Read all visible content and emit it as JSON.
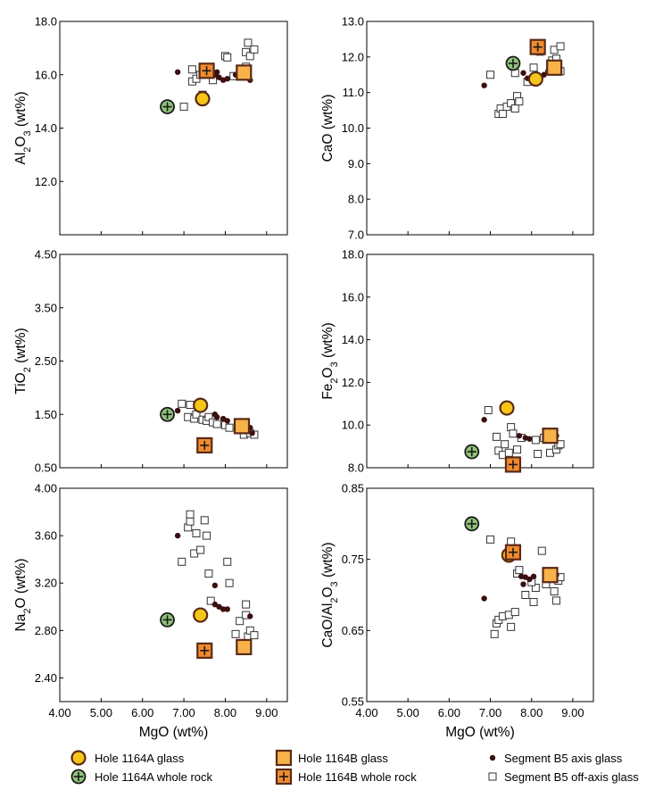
{
  "colors": {
    "glass_1164A_fill": "#f5c518",
    "whole_rock_1164A_fill": "#8fc17a",
    "glass_1164B_fill": "#f7b24a",
    "whole_rock_1164B_fill": "#f08c2e",
    "marker_edge": "#5a2a17",
    "axis_glass": "#3b0f0f",
    "off_axis_edge": "#333333"
  },
  "legend": [
    {
      "key": "glass_1164A",
      "label": "Hole 1164A glass"
    },
    {
      "key": "wr_1164A",
      "label": "Hole 1164A whole rock"
    },
    {
      "key": "glass_1164B",
      "label": "Hole 1164B glass"
    },
    {
      "key": "wr_1164B",
      "label": "Hole 1164B whole rock"
    },
    {
      "key": "axis",
      "label": "Segment B5 axis glass"
    },
    {
      "key": "offaxis",
      "label": "Segment B5 off-axis glass"
    }
  ],
  "chart_data": [
    {
      "type": "scatter",
      "panel": "al2o3",
      "ylabel": "Al2O3 (wt%)",
      "xlim": [
        4,
        9.5
      ],
      "ylim": [
        10.0,
        18.0
      ],
      "xticks": [
        "4.00",
        "5.00",
        "6.00",
        "7.00",
        "8.00",
        "9.00"
      ],
      "yticks": [
        {
          "v": 18.0,
          "l": "18.0"
        },
        {
          "v": 16.0,
          "l": "16.0"
        },
        {
          "v": 14.0,
          "l": "14.0"
        },
        {
          "v": 12.0,
          "l": "12.0"
        }
      ],
      "glass_1164A": [
        [
          7.45,
          15.1
        ]
      ],
      "wr_1164A": [
        [
          6.6,
          14.8
        ]
      ],
      "glass_1164B": [
        [
          8.45,
          16.08
        ]
      ],
      "wr_1164B": [
        [
          7.55,
          16.15
        ]
      ],
      "axis": [
        [
          6.85,
          16.1
        ],
        [
          7.75,
          16.0
        ],
        [
          7.8,
          16.1
        ],
        [
          7.85,
          15.9
        ],
        [
          7.95,
          15.8
        ],
        [
          8.05,
          15.85
        ],
        [
          8.25,
          16.0
        ],
        [
          8.6,
          15.8
        ]
      ],
      "offaxis": [
        [
          7.0,
          14.8
        ],
        [
          7.2,
          15.75
        ],
        [
          7.3,
          15.85
        ],
        [
          7.4,
          16.0
        ],
        [
          7.55,
          16.1
        ],
        [
          7.6,
          16.05
        ],
        [
          7.7,
          15.8
        ],
        [
          7.2,
          16.2
        ],
        [
          8.0,
          16.7
        ],
        [
          8.05,
          16.65
        ],
        [
          8.2,
          15.95
        ],
        [
          8.4,
          16.15
        ],
        [
          8.5,
          16.3
        ],
        [
          8.5,
          16.85
        ],
        [
          8.55,
          17.2
        ],
        [
          8.6,
          16.7
        ],
        [
          8.7,
          16.95
        ],
        [
          7.45,
          15.25
        ]
      ]
    },
    {
      "type": "scatter",
      "panel": "cao",
      "ylabel": "CaO (wt%)",
      "xlim": [
        4,
        9.5
      ],
      "ylim": [
        7.0,
        13.0
      ],
      "xticks": [
        "4.00",
        "5.00",
        "6.00",
        "7.00",
        "8.00",
        "9.00"
      ],
      "yticks": [
        {
          "v": 13.0,
          "l": "13.0"
        },
        {
          "v": 12.0,
          "l": "12.0"
        },
        {
          "v": 11.0,
          "l": "11.0"
        },
        {
          "v": 10.0,
          "l": "10.0"
        },
        {
          "v": 9.0,
          "l": "9.0"
        },
        {
          "v": 8.0,
          "l": "8.0"
        },
        {
          "v": 7.0,
          "l": "7.0"
        }
      ],
      "glass_1164A": [
        [
          8.1,
          11.38
        ]
      ],
      "wr_1164A": [
        [
          7.55,
          11.82
        ]
      ],
      "glass_1164B": [
        [
          8.55,
          11.7
        ]
      ],
      "wr_1164B": [
        [
          8.15,
          12.28
        ]
      ],
      "axis": [
        [
          6.85,
          11.2
        ],
        [
          7.65,
          11.85
        ],
        [
          7.8,
          11.55
        ],
        [
          7.9,
          11.4
        ],
        [
          8.0,
          11.45
        ],
        [
          8.1,
          11.35
        ],
        [
          8.3,
          11.5
        ],
        [
          8.4,
          11.6
        ],
        [
          8.6,
          11.6
        ]
      ],
      "offaxis": [
        [
          7.0,
          11.5
        ],
        [
          7.2,
          10.4
        ],
        [
          7.25,
          10.55
        ],
        [
          7.3,
          10.4
        ],
        [
          7.4,
          10.6
        ],
        [
          7.5,
          10.7
        ],
        [
          7.6,
          10.55
        ],
        [
          7.65,
          10.9
        ],
        [
          7.7,
          10.75
        ],
        [
          7.6,
          11.55
        ],
        [
          7.9,
          11.3
        ],
        [
          8.05,
          11.7
        ],
        [
          8.2,
          12.15
        ],
        [
          8.5,
          11.9
        ],
        [
          8.55,
          12.2
        ],
        [
          8.6,
          11.95
        ],
        [
          8.7,
          12.3
        ],
        [
          8.7,
          11.6
        ]
      ]
    },
    {
      "type": "scatter",
      "panel": "tio2",
      "ylabel": "TiO2 (wt%)",
      "xlim": [
        4,
        9.5
      ],
      "ylim": [
        0.5,
        4.5
      ],
      "xticks": [
        "4.00",
        "5.00",
        "6.00",
        "7.00",
        "8.00",
        "9.00"
      ],
      "yticks": [
        {
          "v": 4.5,
          "l": "4.50"
        },
        {
          "v": 3.5,
          "l": "3.50"
        },
        {
          "v": 2.5,
          "l": "2.50"
        },
        {
          "v": 1.5,
          "l": "1.50"
        },
        {
          "v": 0.5,
          "l": "0.50"
        }
      ],
      "glass_1164A": [
        [
          7.4,
          1.67
        ]
      ],
      "wr_1164A": [
        [
          6.6,
          1.5
        ]
      ],
      "glass_1164B": [
        [
          8.4,
          1.28
        ]
      ],
      "wr_1164B": [
        [
          7.5,
          0.92
        ]
      ],
      "axis": [
        [
          6.85,
          1.57
        ],
        [
          7.75,
          1.5
        ],
        [
          7.8,
          1.45
        ],
        [
          7.95,
          1.42
        ],
        [
          8.05,
          1.38
        ],
        [
          8.3,
          1.3
        ],
        [
          8.6,
          1.25
        ],
        [
          8.65,
          1.15
        ]
      ],
      "offaxis": [
        [
          6.95,
          1.7
        ],
        [
          7.1,
          1.45
        ],
        [
          7.15,
          1.68
        ],
        [
          7.25,
          1.42
        ],
        [
          7.3,
          1.5
        ],
        [
          7.45,
          1.4
        ],
        [
          7.55,
          1.38
        ],
        [
          7.6,
          1.45
        ],
        [
          7.7,
          1.35
        ],
        [
          7.8,
          1.32
        ],
        [
          8.0,
          1.3
        ],
        [
          8.1,
          1.25
        ],
        [
          8.35,
          1.22
        ],
        [
          8.45,
          1.12
        ],
        [
          8.6,
          1.15
        ],
        [
          8.7,
          1.12
        ]
      ]
    },
    {
      "type": "scatter",
      "panel": "fe2o3",
      "ylabel": "Fe2O3 (wt%)",
      "xlim": [
        4,
        9.5
      ],
      "ylim": [
        8.0,
        18.0
      ],
      "xticks": [
        "4.00",
        "5.00",
        "6.00",
        "7.00",
        "8.00",
        "9.00"
      ],
      "yticks": [
        {
          "v": 18.0,
          "l": "18.0"
        },
        {
          "v": 16.0,
          "l": "16.0"
        },
        {
          "v": 14.0,
          "l": "14.0"
        },
        {
          "v": 12.0,
          "l": "12.0"
        },
        {
          "v": 10.0,
          "l": "10.0"
        },
        {
          "v": 8.0,
          "l": "8.0"
        }
      ],
      "glass_1164A": [
        [
          7.4,
          10.8
        ]
      ],
      "wr_1164A": [
        [
          6.55,
          8.75
        ]
      ],
      "glass_1164B": [
        [
          8.45,
          9.5
        ]
      ],
      "wr_1164B": [
        [
          7.55,
          8.15
        ]
      ],
      "axis": [
        [
          6.85,
          10.25
        ],
        [
          7.7,
          9.5
        ],
        [
          7.85,
          9.4
        ],
        [
          7.95,
          9.35
        ],
        [
          8.6,
          9.5
        ]
      ],
      "offaxis": [
        [
          6.95,
          10.7
        ],
        [
          7.15,
          9.45
        ],
        [
          7.2,
          8.8
        ],
        [
          7.3,
          8.6
        ],
        [
          7.35,
          9.1
        ],
        [
          7.45,
          8.7
        ],
        [
          7.5,
          9.9
        ],
        [
          7.55,
          9.6
        ],
        [
          7.65,
          8.85
        ],
        [
          7.75,
          9.4
        ],
        [
          8.1,
          9.3
        ],
        [
          8.15,
          8.65
        ],
        [
          8.3,
          9.4
        ],
        [
          8.45,
          8.7
        ],
        [
          8.6,
          8.85
        ],
        [
          8.65,
          9.05
        ],
        [
          8.7,
          9.1
        ]
      ]
    },
    {
      "type": "scatter",
      "panel": "na2o",
      "ylabel": "Na2O (wt%)",
      "xlabel": "MgO (wt%)",
      "xlim": [
        4,
        9.5
      ],
      "ylim": [
        2.2,
        4.0
      ],
      "xticks": [
        "4.00",
        "5.00",
        "6.00",
        "7.00",
        "8.00",
        "9.00"
      ],
      "yticks": [
        {
          "v": 4.0,
          "l": "4.00"
        },
        {
          "v": 3.6,
          "l": "3.60"
        },
        {
          "v": 3.2,
          "l": "3.20"
        },
        {
          "v": 2.8,
          "l": "2.80"
        },
        {
          "v": 2.4,
          "l": "2.40"
        }
      ],
      "glass_1164A": [
        [
          7.4,
          2.93
        ]
      ],
      "wr_1164A": [
        [
          6.6,
          2.89
        ]
      ],
      "glass_1164B": [
        [
          8.45,
          2.66
        ]
      ],
      "wr_1164B": [
        [
          7.5,
          2.63
        ]
      ],
      "axis": [
        [
          6.85,
          3.6
        ],
        [
          7.75,
          3.18
        ],
        [
          7.75,
          3.02
        ],
        [
          7.85,
          3.0
        ],
        [
          7.95,
          2.98
        ],
        [
          8.05,
          2.98
        ],
        [
          8.6,
          2.92
        ]
      ],
      "offaxis": [
        [
          6.95,
          3.38
        ],
        [
          7.1,
          3.67
        ],
        [
          7.15,
          3.72
        ],
        [
          7.15,
          3.78
        ],
        [
          7.25,
          3.45
        ],
        [
          7.3,
          3.62
        ],
        [
          7.4,
          3.48
        ],
        [
          7.5,
          3.73
        ],
        [
          7.55,
          3.6
        ],
        [
          7.6,
          3.28
        ],
        [
          7.65,
          3.05
        ],
        [
          8.05,
          3.38
        ],
        [
          8.1,
          3.2
        ],
        [
          8.25,
          2.77
        ],
        [
          8.35,
          2.88
        ],
        [
          8.5,
          3.02
        ],
        [
          8.5,
          2.93
        ],
        [
          8.55,
          2.75
        ],
        [
          8.6,
          2.8
        ],
        [
          8.7,
          2.76
        ]
      ]
    },
    {
      "type": "scatter",
      "panel": "cao_al2o3",
      "ylabel": "CaO/Al2O3 (wt%)",
      "xlabel": "MgO (wt%)",
      "xlim": [
        4,
        9.5
      ],
      "ylim": [
        0.55,
        0.85
      ],
      "xticks": [
        "4.00",
        "5.00",
        "6.00",
        "7.00",
        "8.00",
        "9.00"
      ],
      "yticks": [
        {
          "v": 0.85,
          "l": "0.85"
        },
        {
          "v": 0.75,
          "l": "0.75"
        },
        {
          "v": 0.65,
          "l": "0.65"
        },
        {
          "v": 0.55,
          "l": "0.55"
        }
      ],
      "glass_1164A": [
        [
          7.45,
          0.756
        ]
      ],
      "wr_1164A": [
        [
          6.55,
          0.8
        ]
      ],
      "glass_1164B": [
        [
          8.45,
          0.728
        ]
      ],
      "wr_1164B": [
        [
          7.55,
          0.76
        ]
      ],
      "axis": [
        [
          6.85,
          0.695
        ],
        [
          7.75,
          0.726
        ],
        [
          7.8,
          0.715
        ],
        [
          7.85,
          0.725
        ],
        [
          7.95,
          0.722
        ],
        [
          8.05,
          0.726
        ],
        [
          8.6,
          0.728
        ]
      ],
      "offaxis": [
        [
          7.0,
          0.778
        ],
        [
          7.1,
          0.645
        ],
        [
          7.15,
          0.66
        ],
        [
          7.2,
          0.665
        ],
        [
          7.3,
          0.67
        ],
        [
          7.45,
          0.672
        ],
        [
          7.5,
          0.775
        ],
        [
          7.5,
          0.655
        ],
        [
          7.6,
          0.676
        ],
        [
          7.65,
          0.73
        ],
        [
          7.7,
          0.735
        ],
        [
          7.85,
          0.7
        ],
        [
          8.05,
          0.69
        ],
        [
          8.1,
          0.71
        ],
        [
          8.25,
          0.762
        ],
        [
          8.35,
          0.715
        ],
        [
          8.55,
          0.705
        ],
        [
          8.6,
          0.692
        ],
        [
          8.65,
          0.72
        ],
        [
          8.7,
          0.725
        ],
        [
          8.0,
          0.718
        ]
      ]
    }
  ]
}
